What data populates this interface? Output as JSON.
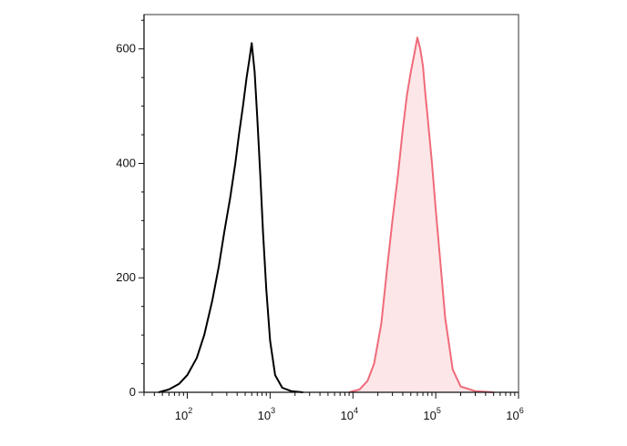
{
  "chart_data": {
    "type": "area",
    "title": "",
    "xlabel": "",
    "ylabel": "",
    "x_scale": "log",
    "xlim": [
      30,
      1000000
    ],
    "ylim": [
      0,
      660
    ],
    "x_ticks": [
      {
        "base": "10",
        "exp": "2",
        "value": 100
      },
      {
        "base": "10",
        "exp": "3",
        "value": 1000
      },
      {
        "base": "10",
        "exp": "4",
        "value": 10000
      },
      {
        "base": "10",
        "exp": "5",
        "value": 100000
      },
      {
        "base": "10",
        "exp": "6",
        "value": 1000000
      }
    ],
    "y_ticks": [
      {
        "label": "0",
        "value": 0
      },
      {
        "label": "200",
        "value": 200
      },
      {
        "label": "400",
        "value": 400
      },
      {
        "label": "600",
        "value": 600
      }
    ],
    "series": [
      {
        "color": "#000000",
        "fill": "none",
        "x": [
          45,
          60,
          80,
          100,
          130,
          160,
          200,
          240,
          280,
          330,
          380,
          420,
          470,
          520,
          560,
          600,
          650,
          700,
          760,
          820,
          900,
          1000,
          1150,
          1400,
          1800,
          2500
        ],
        "y": [
          0,
          5,
          15,
          30,
          60,
          100,
          160,
          220,
          280,
          340,
          400,
          450,
          500,
          550,
          580,
          610,
          560,
          480,
          380,
          280,
          180,
          90,
          30,
          8,
          2,
          0
        ]
      },
      {
        "color": "#f06b7a",
        "fill": "#fde6e8",
        "x": [
          9000,
          12000,
          15000,
          18000,
          22000,
          26000,
          30000,
          35000,
          40000,
          45000,
          50000,
          55000,
          60000,
          65000,
          70000,
          75000,
          80000,
          90000,
          100000,
          115000,
          130000,
          160000,
          200000,
          300000,
          500000
        ],
        "y": [
          0,
          5,
          20,
          50,
          120,
          220,
          300,
          380,
          460,
          520,
          560,
          590,
          620,
          600,
          570,
          520,
          480,
          400,
          320,
          220,
          130,
          40,
          10,
          2,
          0
        ]
      }
    ]
  }
}
